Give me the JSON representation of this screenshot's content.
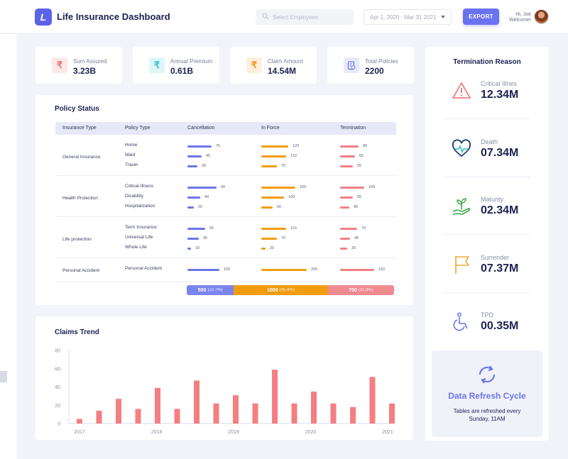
{
  "app": {
    "title": "Life Insurance Dashboard",
    "logo_letter": "L"
  },
  "header": {
    "search_placeholder": "Select Employees",
    "date_range": "Apr 1, 2020 - Mar 31 2021",
    "export_label": "EXPORT",
    "greeting_line1": "Hi, Joe",
    "greeting_line2": "Welcome!"
  },
  "kpis": [
    {
      "label": "Sum Assured",
      "value": "3.23B",
      "icon": "rupee-icon",
      "color": "#f26d6d",
      "bg": "#fde9e9"
    },
    {
      "label": "Annual  Premium",
      "value": "0.61B",
      "icon": "rupee-icon",
      "color": "#2ec4c9",
      "bg": "#dff6f7"
    },
    {
      "label": "Claim Amount",
      "value": "14.54M",
      "icon": "rupee-icon",
      "color": "#f0941a",
      "bg": "#fdf0dc"
    },
    {
      "label": "Total Policies",
      "value": "2200",
      "icon": "policy-document-icon",
      "color": "#6b76e8",
      "bg": "#e8eafb"
    }
  ],
  "policy_status": {
    "title": "Policy Status",
    "columns": [
      "Insurance Type",
      "Policy Type",
      "Cancellation",
      "In Force",
      "Termination"
    ],
    "colors": {
      "cancellation": "#6b76e8",
      "in_force": "#f39c12",
      "termination": "#f07f86"
    },
    "groups": [
      {
        "insurance_type": "General Insurance",
        "rows": [
          {
            "policy": "Home",
            "cancellation": 75,
            "in_force": 120,
            "termination": 80
          },
          {
            "policy": "Maid",
            "cancellation": 45,
            "in_force": 110,
            "termination": 65
          },
          {
            "policy": "Travel",
            "cancellation": 30,
            "in_force": 70,
            "termination": 55
          }
        ]
      },
      {
        "insurance_type": "Health Protection",
        "rows": [
          {
            "policy": "Critical Illness",
            "cancellation": 90,
            "in_force": 150,
            "termination": 105
          },
          {
            "policy": "Disability",
            "cancellation": 40,
            "in_force": 100,
            "termination": 55
          },
          {
            "policy": "Hospitalization",
            "cancellation": 20,
            "in_force": 50,
            "termination": 40
          }
        ]
      },
      {
        "insurance_type": "Life protection",
        "rows": [
          {
            "policy": "Term Insurance",
            "cancellation": 55,
            "in_force": 110,
            "termination": 75
          },
          {
            "policy": "Universal Life",
            "cancellation": 35,
            "in_force": 70,
            "termination": 45
          },
          {
            "policy": "Whole Life",
            "cancellation": 10,
            "in_force": 20,
            "termination": 30
          }
        ]
      },
      {
        "insurance_type": "Personal Accident",
        "rows": [
          {
            "policy": "Personal Accident",
            "cancellation": 100,
            "in_force": 200,
            "termination": 150
          }
        ]
      }
    ],
    "totals": [
      {
        "value": "500",
        "pct": "(22.7%)",
        "share": 0.227,
        "color": "#7b83ee"
      },
      {
        "value": "1000",
        "pct": "(45.4%)",
        "share": 0.454,
        "color": "#f39c12"
      },
      {
        "value": "700",
        "pct": "(31.9%)",
        "share": 0.319,
        "color": "#ef8a90"
      }
    ]
  },
  "claims_trend": {
    "title": "Claims Trend",
    "chart_data": {
      "type": "bar",
      "title": "Claims Trend",
      "ylim": [
        0,
        80
      ],
      "yticks": [
        0,
        20,
        40,
        60,
        80
      ],
      "xticks": [
        "2017",
        "2018",
        "2019",
        "2020",
        "2021"
      ],
      "values": [
        5,
        14,
        27,
        16,
        39,
        16,
        47,
        22,
        31,
        22,
        59,
        22,
        35,
        22,
        18,
        51,
        22
      ],
      "bar_color": "#f47f82"
    }
  },
  "termination": {
    "title": "Termination Reason",
    "items": [
      {
        "label": "Critical Illnes",
        "value": "12.34M",
        "icon": "warning-triangle-icon",
        "color": "#f07f86"
      },
      {
        "label": "Death",
        "value": "07.34M",
        "icon": "heartbeat-icon",
        "color": "#1f3a6e"
      },
      {
        "label": "Maturity",
        "value": "02.34M",
        "icon": "hand-plant-icon",
        "color": "#3aa74a"
      },
      {
        "label": "Surrender",
        "value": "07.37M",
        "icon": "surrender-flag-icon",
        "color": "#f4a93a"
      },
      {
        "label": "TPD",
        "value": "00.35M",
        "icon": "wheelchair-icon",
        "color": "#6b76e8"
      }
    ],
    "refresh": {
      "title": "Data Refresh Cycle",
      "line1": "Tables are refreshed every",
      "line2": "Sunday, 11AM"
    }
  }
}
